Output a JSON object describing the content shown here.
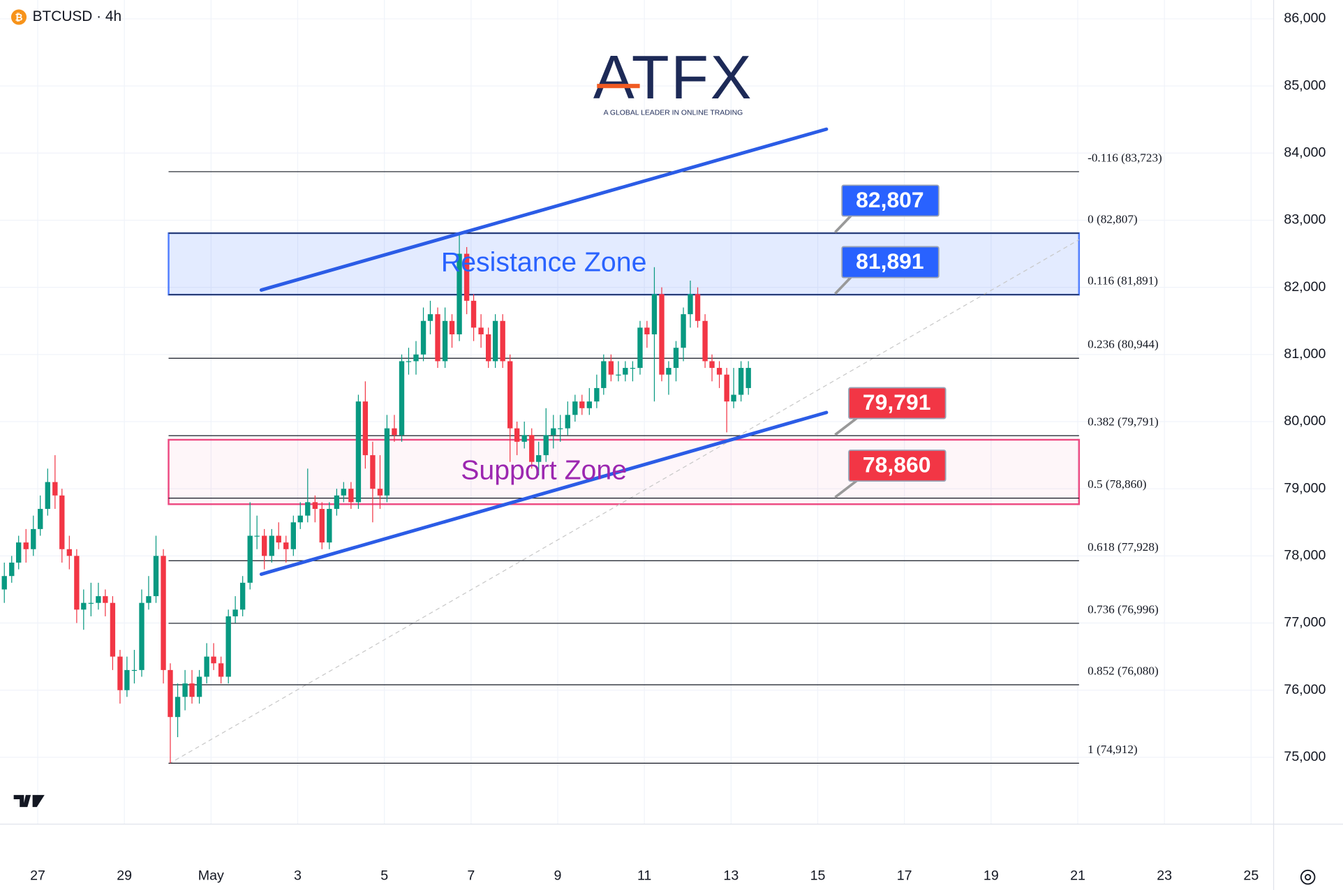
{
  "chart_data": {
    "type": "candlestick",
    "title": "BTCUSD · 4h",
    "logo": "ATFX",
    "logo_tagline": "A GLOBAL LEADER IN ONLINE TRADING",
    "up_color": "#089981",
    "down_color": "#f23645",
    "grid": true,
    "xlim": [
      -0.87,
      28.52
    ],
    "ylim": [
      74005,
      86280
    ],
    "xticks": [
      {
        "value": 0,
        "label": "27"
      },
      {
        "value": 2,
        "label": "29"
      },
      {
        "value": 4,
        "label": "May"
      },
      {
        "value": 6,
        "label": "3"
      },
      {
        "value": 8,
        "label": "5"
      },
      {
        "value": 10,
        "label": "7"
      },
      {
        "value": 12,
        "label": "9"
      },
      {
        "value": 14,
        "label": "11"
      },
      {
        "value": 16,
        "label": "13"
      },
      {
        "value": 18,
        "label": "15"
      },
      {
        "value": 20,
        "label": "17"
      },
      {
        "value": 22,
        "label": "19"
      },
      {
        "value": 24,
        "label": "21"
      },
      {
        "value": 26,
        "label": "23"
      },
      {
        "value": 28,
        "label": "25"
      }
    ],
    "yticks": [
      {
        "value": 75000,
        "label": "75,000"
      },
      {
        "value": 76000,
        "label": "76,000"
      },
      {
        "value": 77000,
        "label": "77,000"
      },
      {
        "value": 78000,
        "label": "78,000"
      },
      {
        "value": 79000,
        "label": "79,000"
      },
      {
        "value": 80000,
        "label": "80,000"
      },
      {
        "value": 81000,
        "label": "81,000"
      },
      {
        "value": 82000,
        "label": "82,000"
      },
      {
        "value": 83000,
        "label": "83,000"
      },
      {
        "value": 84000,
        "label": "84,000"
      },
      {
        "value": 85000,
        "label": "85,000"
      },
      {
        "value": 86000,
        "label": "86,000"
      }
    ],
    "candles": [
      [
        -0.77,
        77500,
        77900,
        77300,
        77700
      ],
      [
        -0.6,
        77700,
        78000,
        77600,
        77900
      ],
      [
        -0.44,
        77900,
        78300,
        77800,
        78200
      ],
      [
        -0.27,
        78200,
        78400,
        77900,
        78100
      ],
      [
        -0.1,
        78100,
        78600,
        78000,
        78400
      ],
      [
        0.06,
        78400,
        78900,
        78300,
        78700
      ],
      [
        0.23,
        78700,
        79300,
        78600,
        79100
      ],
      [
        0.4,
        79100,
        79500,
        78700,
        78900
      ],
      [
        0.56,
        78900,
        79000,
        77900,
        78100
      ],
      [
        0.73,
        78100,
        78300,
        77800,
        78000
      ],
      [
        0.9,
        78000,
        78100,
        77000,
        77200
      ],
      [
        1.06,
        77200,
        77500,
        76900,
        77300
      ],
      [
        1.23,
        77300,
        77600,
        77100,
        77300
      ],
      [
        1.4,
        77300,
        77600,
        77200,
        77400
      ],
      [
        1.56,
        77400,
        77500,
        77100,
        77300
      ],
      [
        1.73,
        77300,
        77400,
        76300,
        76500
      ],
      [
        1.9,
        76500,
        76600,
        75800,
        76000
      ],
      [
        2.06,
        76000,
        76500,
        75900,
        76300
      ],
      [
        2.23,
        76300,
        76600,
        76100,
        76300
      ],
      [
        2.4,
        76300,
        77500,
        76200,
        77300
      ],
      [
        2.56,
        77300,
        77700,
        77200,
        77400
      ],
      [
        2.73,
        77400,
        78300,
        77300,
        78000
      ],
      [
        2.9,
        78000,
        78100,
        76100,
        76300
      ],
      [
        3.06,
        76300,
        76400,
        74912,
        75600
      ],
      [
        3.23,
        75600,
        76100,
        75300,
        75900
      ],
      [
        3.4,
        75900,
        76300,
        75700,
        76100
      ],
      [
        3.56,
        76100,
        76300,
        75800,
        75900
      ],
      [
        3.73,
        75900,
        76300,
        75800,
        76200
      ],
      [
        3.9,
        76200,
        76700,
        76100,
        76500
      ],
      [
        4.06,
        76500,
        76700,
        76300,
        76400
      ],
      [
        4.23,
        76400,
        76500,
        76100,
        76200
      ],
      [
        4.4,
        76200,
        77200,
        76100,
        77100
      ],
      [
        4.56,
        77100,
        77400,
        77000,
        77200
      ],
      [
        4.73,
        77200,
        77700,
        77100,
        77600
      ],
      [
        4.9,
        77600,
        78800,
        77500,
        78300
      ],
      [
        5.06,
        78300,
        78600,
        78100,
        78300
      ],
      [
        5.23,
        78300,
        78400,
        77800,
        78000
      ],
      [
        5.4,
        78000,
        78400,
        77900,
        78300
      ],
      [
        5.56,
        78300,
        78500,
        78100,
        78200
      ],
      [
        5.73,
        78200,
        78300,
        77900,
        78100
      ],
      [
        5.9,
        78100,
        78600,
        78000,
        78500
      ],
      [
        6.06,
        78500,
        78800,
        78400,
        78600
      ],
      [
        6.23,
        78600,
        79300,
        78500,
        78800
      ],
      [
        6.4,
        78800,
        78900,
        78500,
        78700
      ],
      [
        6.56,
        78700,
        78800,
        78100,
        78200
      ],
      [
        6.73,
        78200,
        78800,
        78100,
        78700
      ],
      [
        6.9,
        78700,
        79000,
        78600,
        78900
      ],
      [
        7.06,
        78900,
        79100,
        78800,
        79000
      ],
      [
        7.23,
        79000,
        79100,
        78700,
        78800
      ],
      [
        7.4,
        78800,
        80400,
        78700,
        80300
      ],
      [
        7.56,
        80300,
        80600,
        79300,
        79500
      ],
      [
        7.73,
        79500,
        79700,
        78500,
        79000
      ],
      [
        7.9,
        79000,
        79500,
        78700,
        78900
      ],
      [
        8.06,
        78900,
        80100,
        78800,
        79900
      ],
      [
        8.23,
        79900,
        80100,
        79700,
        79800
      ],
      [
        8.4,
        79800,
        81000,
        79700,
        80900
      ],
      [
        8.56,
        80900,
        81100,
        80700,
        80900
      ],
      [
        8.73,
        80900,
        81200,
        80700,
        81000
      ],
      [
        8.9,
        81000,
        81700,
        80900,
        81500
      ],
      [
        9.06,
        81500,
        81800,
        81300,
        81600
      ],
      [
        9.23,
        81600,
        81700,
        80800,
        80900
      ],
      [
        9.4,
        80900,
        81700,
        80800,
        81500
      ],
      [
        9.56,
        81500,
        81600,
        81100,
        81300
      ],
      [
        9.73,
        81300,
        82807,
        81200,
        82500
      ],
      [
        9.9,
        82500,
        82600,
        81600,
        81800
      ],
      [
        10.06,
        81800,
        81900,
        81200,
        81400
      ],
      [
        10.23,
        81400,
        81600,
        81100,
        81300
      ],
      [
        10.4,
        81300,
        81400,
        80800,
        80900
      ],
      [
        10.56,
        80900,
        81600,
        80800,
        81500
      ],
      [
        10.73,
        81500,
        81600,
        80800,
        80900
      ],
      [
        10.9,
        80900,
        81000,
        79400,
        79900
      ],
      [
        11.06,
        79900,
        80000,
        79500,
        79700
      ],
      [
        11.23,
        79700,
        80000,
        79600,
        79800
      ],
      [
        11.4,
        79800,
        79900,
        79300,
        79400
      ],
      [
        11.56,
        79400,
        79700,
        79200,
        79500
      ],
      [
        11.73,
        79500,
        80200,
        79400,
        79800
      ],
      [
        11.9,
        79800,
        80100,
        79600,
        79900
      ],
      [
        12.06,
        79900,
        80100,
        79700,
        79900
      ],
      [
        12.23,
        79900,
        80300,
        79800,
        80100
      ],
      [
        12.4,
        80100,
        80400,
        80000,
        80300
      ],
      [
        12.56,
        80300,
        80400,
        80100,
        80200
      ],
      [
        12.73,
        80200,
        80500,
        80100,
        80300
      ],
      [
        12.9,
        80300,
        80700,
        80200,
        80500
      ],
      [
        13.06,
        80500,
        81000,
        80400,
        80900
      ],
      [
        13.23,
        80900,
        81000,
        80600,
        80700
      ],
      [
        13.4,
        80700,
        80900,
        80600,
        80700
      ],
      [
        13.56,
        80700,
        80900,
        80600,
        80800
      ],
      [
        13.73,
        80800,
        80900,
        80600,
        80800
      ],
      [
        13.9,
        80800,
        81500,
        80700,
        81400
      ],
      [
        14.06,
        81400,
        81500,
        81100,
        81300
      ],
      [
        14.23,
        81300,
        82300,
        80300,
        81900
      ],
      [
        14.4,
        81900,
        82000,
        80600,
        80700
      ],
      [
        14.56,
        80700,
        80900,
        80400,
        80800
      ],
      [
        14.73,
        80800,
        81200,
        80600,
        81100
      ],
      [
        14.9,
        81100,
        81700,
        80900,
        81600
      ],
      [
        15.06,
        81600,
        82100,
        81400,
        81900
      ],
      [
        15.23,
        81900,
        82000,
        81400,
        81500
      ],
      [
        15.4,
        81500,
        81600,
        80800,
        80900
      ],
      [
        15.56,
        80900,
        81000,
        80600,
        80800
      ],
      [
        15.73,
        80800,
        80900,
        80500,
        80700
      ],
      [
        15.9,
        80700,
        80800,
        79840,
        80300
      ],
      [
        16.06,
        80300,
        80800,
        80200,
        80400
      ],
      [
        16.23,
        80400,
        80900,
        80300,
        80800
      ],
      [
        16.4,
        80500,
        80900,
        80400,
        80800
      ]
    ],
    "fib_span": [
      3.02,
      24.03
    ],
    "fib_levels": [
      {
        "value": 83723,
        "label": "-0.116 (83,723)"
      },
      {
        "value": 82807,
        "label": "0 (82,807)"
      },
      {
        "value": 81891,
        "label": "0.116 (81,891)"
      },
      {
        "value": 80944,
        "label": "0.236 (80,944)"
      },
      {
        "value": 79791,
        "label": "0.382 (79,791)"
      },
      {
        "value": 78860,
        "label": "0.5 (78,860)"
      },
      {
        "value": 77928,
        "label": "0.618 (77,928)"
      },
      {
        "value": 76996,
        "label": "0.736 (76,996)"
      },
      {
        "value": 76080,
        "label": "0.852 (76,080)"
      },
      {
        "value": 74912,
        "label": "1 (74,912)"
      }
    ],
    "zones": [
      {
        "label": "Resistance Zone",
        "range": [
          81891,
          82807
        ],
        "color": "#2962ff"
      },
      {
        "label": "Support Zone",
        "range": [
          78770,
          79730
        ],
        "color": "#e91e63",
        "text_color": "#9c27b0"
      }
    ],
    "price_labels": [
      {
        "value": 82807,
        "label": "82,807",
        "color": "#2962ff"
      },
      {
        "value": 81891,
        "label": "81,891",
        "color": "#2962ff"
      },
      {
        "value": 79791,
        "label": "79,791",
        "color": "#f23645"
      },
      {
        "value": 78860,
        "label": "78,860",
        "color": "#f23645"
      }
    ],
    "trendlines": [
      {
        "points": [
          [
            5.16,
            81960
          ],
          [
            18.2,
            84356
          ]
        ],
        "color": "#2b5ce6"
      },
      {
        "points": [
          [
            5.16,
            77727
          ],
          [
            18.2,
            80136
          ]
        ],
        "color": "#2b5ce6"
      }
    ],
    "diagonal": {
      "points": [
        [
          3.02,
          74900
        ],
        [
          24.03,
          82710
        ]
      ],
      "color": "#c8c8c8"
    }
  }
}
